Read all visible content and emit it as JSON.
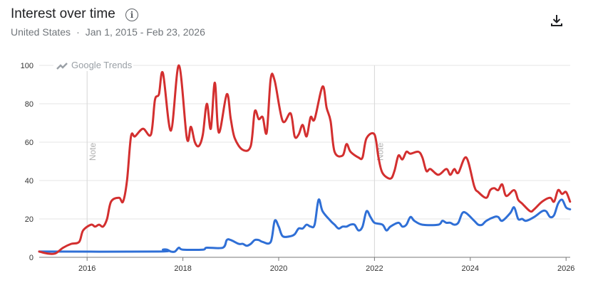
{
  "header": {
    "title": "Interest over time",
    "info_icon": "info-icon",
    "region": "United States",
    "separator": "·",
    "date_range": "Jan 1, 2015 - Feb 23, 2026",
    "download_icon": "download-icon"
  },
  "watermark": "Google Trends",
  "chart_data": {
    "type": "line",
    "title": "Interest over time",
    "xlabel": "",
    "ylabel": "",
    "xlim": [
      "2015-01",
      "2026-02"
    ],
    "ylim": [
      0,
      100
    ],
    "x_ticks": [
      "2016",
      "2018",
      "2020",
      "2022",
      "2024",
      "2026"
    ],
    "y_ticks": [
      0,
      20,
      40,
      60,
      80,
      100
    ],
    "grid": true,
    "notes": [
      {
        "date": "2016-01",
        "label": "Note"
      },
      {
        "date": "2022-01",
        "label": "Note"
      }
    ],
    "series": [
      {
        "color": "#d32f2f",
        "points": [
          [
            "2015-01",
            3
          ],
          [
            "2015-03",
            2
          ],
          [
            "2015-05",
            2
          ],
          [
            "2015-07",
            5
          ],
          [
            "2015-09",
            7
          ],
          [
            "2015-11",
            8
          ],
          [
            "2015-12",
            14
          ],
          [
            "2016-02",
            17
          ],
          [
            "2016-03",
            16
          ],
          [
            "2016-04",
            17
          ],
          [
            "2016-05",
            16
          ],
          [
            "2016-06",
            20
          ],
          [
            "2016-07",
            29
          ],
          [
            "2016-09",
            31
          ],
          [
            "2016-10",
            29
          ],
          [
            "2016-11",
            40
          ],
          [
            "2016-12",
            63
          ],
          [
            "2017-01",
            63
          ],
          [
            "2017-03",
            67
          ],
          [
            "2017-05",
            64
          ],
          [
            "2017-06",
            82
          ],
          [
            "2017-07",
            85
          ],
          [
            "2017-08",
            96
          ],
          [
            "2017-10",
            66
          ],
          [
            "2017-12",
            100
          ],
          [
            "2018-02",
            62
          ],
          [
            "2018-03",
            68
          ],
          [
            "2018-04",
            60
          ],
          [
            "2018-05",
            58
          ],
          [
            "2018-06",
            64
          ],
          [
            "2018-07",
            80
          ],
          [
            "2018-08",
            67
          ],
          [
            "2018-09",
            91
          ],
          [
            "2018-10",
            65
          ],
          [
            "2018-12",
            85
          ],
          [
            "2019-01",
            72
          ],
          [
            "2019-02",
            62
          ],
          [
            "2019-04",
            56
          ],
          [
            "2019-06",
            58
          ],
          [
            "2019-07",
            76
          ],
          [
            "2019-08",
            72
          ],
          [
            "2019-09",
            73
          ],
          [
            "2019-10",
            65
          ],
          [
            "2019-11",
            93
          ],
          [
            "2019-12",
            92
          ],
          [
            "2020-02",
            71
          ],
          [
            "2020-04",
            75
          ],
          [
            "2020-05",
            63
          ],
          [
            "2020-06",
            64
          ],
          [
            "2020-07",
            69
          ],
          [
            "2020-08",
            63
          ],
          [
            "2020-09",
            73
          ],
          [
            "2020-10",
            72
          ],
          [
            "2020-12",
            89
          ],
          [
            "2021-01",
            78
          ],
          [
            "2021-02",
            71
          ],
          [
            "2021-03",
            55
          ],
          [
            "2021-05",
            53
          ],
          [
            "2021-06",
            59
          ],
          [
            "2021-07",
            55
          ],
          [
            "2021-09",
            52
          ],
          [
            "2021-10",
            52
          ],
          [
            "2021-11",
            62
          ],
          [
            "2022-01",
            64
          ],
          [
            "2022-02",
            52
          ],
          [
            "2022-03",
            44
          ],
          [
            "2022-05",
            41
          ],
          [
            "2022-06",
            45
          ],
          [
            "2022-07",
            53
          ],
          [
            "2022-08",
            51
          ],
          [
            "2022-09",
            55
          ],
          [
            "2022-10",
            54
          ],
          [
            "2022-12",
            55
          ],
          [
            "2023-01",
            52
          ],
          [
            "2023-02",
            45
          ],
          [
            "2023-03",
            46
          ],
          [
            "2023-05",
            43
          ],
          [
            "2023-07",
            46
          ],
          [
            "2023-08",
            43
          ],
          [
            "2023-09",
            46
          ],
          [
            "2023-10",
            44
          ],
          [
            "2023-12",
            52
          ],
          [
            "2024-02",
            37
          ],
          [
            "2024-03",
            34
          ],
          [
            "2024-05",
            31
          ],
          [
            "2024-06",
            35
          ],
          [
            "2024-07",
            36
          ],
          [
            "2024-08",
            35
          ],
          [
            "2024-09",
            38
          ],
          [
            "2024-10",
            32
          ],
          [
            "2024-12",
            35
          ],
          [
            "2025-01",
            30
          ],
          [
            "2025-02",
            28
          ],
          [
            "2025-04",
            24
          ],
          [
            "2025-05",
            25
          ],
          [
            "2025-07",
            29
          ],
          [
            "2025-09",
            31
          ],
          [
            "2025-10",
            29
          ],
          [
            "2025-11",
            35
          ],
          [
            "2025-12",
            33
          ],
          [
            "2026-01",
            34
          ],
          [
            "2026-02",
            29
          ]
        ]
      },
      {
        "color": "#2f6fd6",
        "points": [
          [
            "2015-01",
            3
          ],
          [
            "2017-07",
            3
          ],
          [
            "2017-08",
            4
          ],
          [
            "2017-09",
            4
          ],
          [
            "2017-10",
            3
          ],
          [
            "2017-11",
            3
          ],
          [
            "2017-12",
            5
          ],
          [
            "2018-01",
            4
          ],
          [
            "2018-06",
            4
          ],
          [
            "2018-07",
            5
          ],
          [
            "2018-11",
            5
          ],
          [
            "2018-12",
            9
          ],
          [
            "2019-01",
            9
          ],
          [
            "2019-03",
            7
          ],
          [
            "2019-04",
            7
          ],
          [
            "2019-05",
            6
          ],
          [
            "2019-06",
            7
          ],
          [
            "2019-07",
            9
          ],
          [
            "2019-08",
            9
          ],
          [
            "2019-09",
            8
          ],
          [
            "2019-11",
            8
          ],
          [
            "2019-12",
            19
          ],
          [
            "2020-01",
            16
          ],
          [
            "2020-02",
            11
          ],
          [
            "2020-04",
            11
          ],
          [
            "2020-05",
            12
          ],
          [
            "2020-06",
            15
          ],
          [
            "2020-07",
            15
          ],
          [
            "2020-08",
            17
          ],
          [
            "2020-09",
            16
          ],
          [
            "2020-10",
            17
          ],
          [
            "2020-11",
            30
          ],
          [
            "2020-12",
            24
          ],
          [
            "2021-02",
            19
          ],
          [
            "2021-03",
            17
          ],
          [
            "2021-04",
            15
          ],
          [
            "2021-05",
            16
          ],
          [
            "2021-06",
            16
          ],
          [
            "2021-07",
            17
          ],
          [
            "2021-08",
            17
          ],
          [
            "2021-09",
            14
          ],
          [
            "2021-10",
            16
          ],
          [
            "2021-11",
            24
          ],
          [
            "2021-12",
            21
          ],
          [
            "2022-01",
            18
          ],
          [
            "2022-03",
            17
          ],
          [
            "2022-04",
            14
          ],
          [
            "2022-05",
            16
          ],
          [
            "2022-07",
            18
          ],
          [
            "2022-08",
            16
          ],
          [
            "2022-09",
            17
          ],
          [
            "2022-10",
            21
          ],
          [
            "2022-11",
            19
          ],
          [
            "2023-01",
            17
          ],
          [
            "2023-05",
            17
          ],
          [
            "2023-06",
            19
          ],
          [
            "2023-07",
            18
          ],
          [
            "2023-08",
            18
          ],
          [
            "2023-09",
            17
          ],
          [
            "2023-10",
            18
          ],
          [
            "2023-11",
            23
          ],
          [
            "2023-12",
            23
          ],
          [
            "2024-02",
            19
          ],
          [
            "2024-03",
            17
          ],
          [
            "2024-04",
            17
          ],
          [
            "2024-05",
            19
          ],
          [
            "2024-07",
            21
          ],
          [
            "2024-08",
            21
          ],
          [
            "2024-09",
            19
          ],
          [
            "2024-11",
            23
          ],
          [
            "2024-12",
            26
          ],
          [
            "2025-01",
            20
          ],
          [
            "2025-02",
            20
          ],
          [
            "2025-03",
            19
          ],
          [
            "2025-05",
            21
          ],
          [
            "2025-07",
            24
          ],
          [
            "2025-08",
            24
          ],
          [
            "2025-09",
            21
          ],
          [
            "2025-10",
            22
          ],
          [
            "2025-11",
            28
          ],
          [
            "2025-12",
            30
          ],
          [
            "2026-01",
            26
          ],
          [
            "2026-02",
            25
          ]
        ]
      }
    ]
  }
}
